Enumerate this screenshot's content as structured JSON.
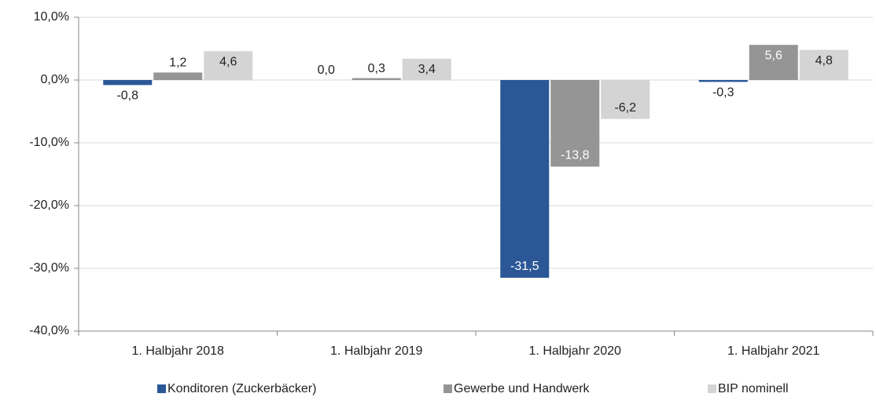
{
  "chart_data": {
    "type": "bar",
    "categories": [
      "1. Halbjahr 2018",
      "1. Halbjahr 2019",
      "1. Halbjahr 2020",
      "1. Halbjahr 2021"
    ],
    "series": [
      {
        "name": "Konditoren (Zuckerbäcker)",
        "color": "#2b5797",
        "values": [
          -0.8,
          0.0,
          -31.5,
          -0.3
        ],
        "value_labels": [
          "-0,8",
          "0,0",
          "-31,5",
          "-0,3"
        ]
      },
      {
        "name": "Gewerbe und Handwerk",
        "color": "#959595",
        "values": [
          1.2,
          0.3,
          -13.8,
          5.6
        ],
        "value_labels": [
          "1,2",
          "0,3",
          "-13,8",
          "5,6"
        ]
      },
      {
        "name": "BIP nominell",
        "color": "#d4d4d4",
        "values": [
          4.6,
          3.4,
          -6.2,
          4.8
        ],
        "value_labels": [
          "4,6",
          "3,4",
          "-6,2",
          "4,8"
        ]
      }
    ],
    "ylim": [
      -40,
      10
    ],
    "yticks": [
      {
        "value": -40,
        "label": "-40,0%"
      },
      {
        "value": -30,
        "label": "-30,0%"
      },
      {
        "value": -20,
        "label": "-20,0%"
      },
      {
        "value": -10,
        "label": "-10,0%"
      },
      {
        "value": 0,
        "label": "0,0%"
      },
      {
        "value": 10,
        "label": "10,0%"
      }
    ],
    "grid": true,
    "legend": "bottom"
  }
}
